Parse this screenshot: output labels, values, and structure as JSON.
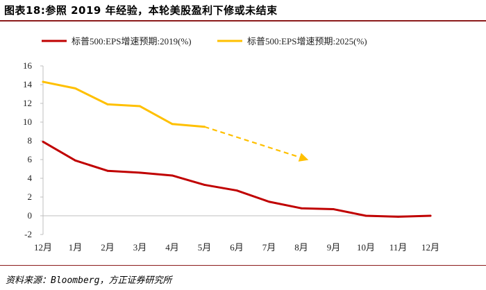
{
  "title": "图表18:参照 2019 年经验，本轮美股盈利下修或未结束",
  "source": "资料来源：Bloomberg，方正证券研究所",
  "chart_data": {
    "type": "line",
    "categories": [
      "12月",
      "1月",
      "2月",
      "3月",
      "4月",
      "5月",
      "6月",
      "7月",
      "8月",
      "9月",
      "10月",
      "11月",
      "12月"
    ],
    "series": [
      {
        "name": "标普500:EPS增速预期:2019(%)",
        "color": "#c00000",
        "values": [
          7.9,
          5.9,
          4.8,
          4.6,
          4.3,
          3.3,
          2.7,
          1.5,
          0.8,
          0.7,
          0.0,
          -0.1,
          0.0
        ]
      },
      {
        "name": "标普500:EPS增速预期:2025(%)",
        "color": "#ffc000",
        "values": [
          14.3,
          13.6,
          11.9,
          11.7,
          9.8,
          9.5,
          null,
          null,
          null,
          null,
          null,
          null,
          null
        ]
      }
    ],
    "annotation": {
      "type": "dashed-arrow",
      "color": "#ffc000",
      "from": {
        "x": "5月",
        "y": 9.5
      },
      "to": {
        "x": "8月",
        "y": 6.1
      }
    },
    "yticks": [
      -2,
      0,
      2,
      4,
      6,
      8,
      10,
      12,
      14,
      16
    ],
    "ylim": [
      -2,
      16
    ],
    "xlabel": "",
    "ylabel": "",
    "legend_position": "top",
    "grid": false
  }
}
